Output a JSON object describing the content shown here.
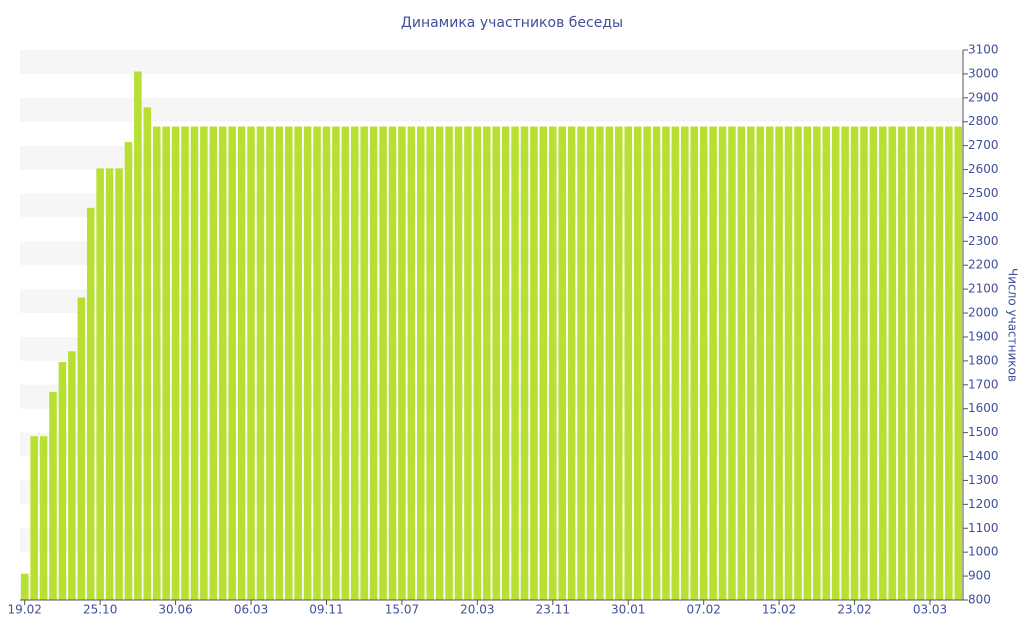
{
  "chart_data": {
    "type": "bar",
    "title": "Динамика участников беседы",
    "y_label": "Число участников",
    "categories": [
      "19.02",
      null,
      null,
      null,
      null,
      null,
      null,
      null,
      "25.10",
      null,
      null,
      null,
      null,
      null,
      null,
      null,
      "30.06",
      null,
      null,
      null,
      null,
      null,
      null,
      null,
      "06.03",
      null,
      null,
      null,
      null,
      null,
      null,
      null,
      "09.11",
      null,
      null,
      null,
      null,
      null,
      null,
      null,
      "15.07",
      null,
      null,
      null,
      null,
      null,
      null,
      null,
      "20.03",
      null,
      null,
      null,
      null,
      null,
      null,
      null,
      "23.11",
      null,
      null,
      null,
      null,
      null,
      null,
      null,
      "30.01",
      null,
      null,
      null,
      null,
      null,
      null,
      null,
      "07.02",
      null,
      null,
      null,
      null,
      null,
      null,
      null,
      "15.02",
      null,
      null,
      null,
      null,
      null,
      null,
      null,
      "23.02",
      null,
      null,
      null,
      null,
      null,
      null,
      null,
      "03.03",
      null,
      null,
      null
    ],
    "values": [
      910,
      1485,
      1485,
      1670,
      1795,
      1840,
      2065,
      2440,
      2605,
      2605,
      2605,
      2715,
      3010,
      2860,
      2780,
      2780,
      2780,
      2780,
      2780,
      2780,
      2780,
      2780,
      2780,
      2780,
      2780,
      2780,
      2780,
      2780,
      2780,
      2780,
      2780,
      2780,
      2780,
      2780,
      2780,
      2780,
      2780,
      2780,
      2780,
      2780,
      2780,
      2780,
      2780,
      2780,
      2780,
      2780,
      2780,
      2780,
      2780,
      2780,
      2780,
      2780,
      2780,
      2780,
      2780,
      2780,
      2780,
      2780,
      2780,
      2780,
      2780,
      2780,
      2780,
      2780,
      2780,
      2780,
      2780,
      2780,
      2780,
      2780,
      2780,
      2780,
      2780,
      2780,
      2780,
      2780,
      2780,
      2780,
      2780,
      2780,
      2780,
      2780,
      2780,
      2780,
      2780,
      2780,
      2780,
      2780,
      2780,
      2780,
      2780,
      2780,
      2780,
      2780,
      2780,
      2780,
      2780,
      2780,
      2780,
      2780
    ],
    "color": "#b7e033",
    "ylim": [
      800,
      3100
    ],
    "yticks": [
      800,
      900,
      1000,
      1100,
      1200,
      1300,
      1400,
      1500,
      1600,
      1700,
      1800,
      1900,
      2000,
      2100,
      2200,
      2300,
      2400,
      2500,
      2600,
      2700,
      2800,
      2900,
      3000,
      3100
    ],
    "y_axis_side": "right",
    "grid": true
  }
}
